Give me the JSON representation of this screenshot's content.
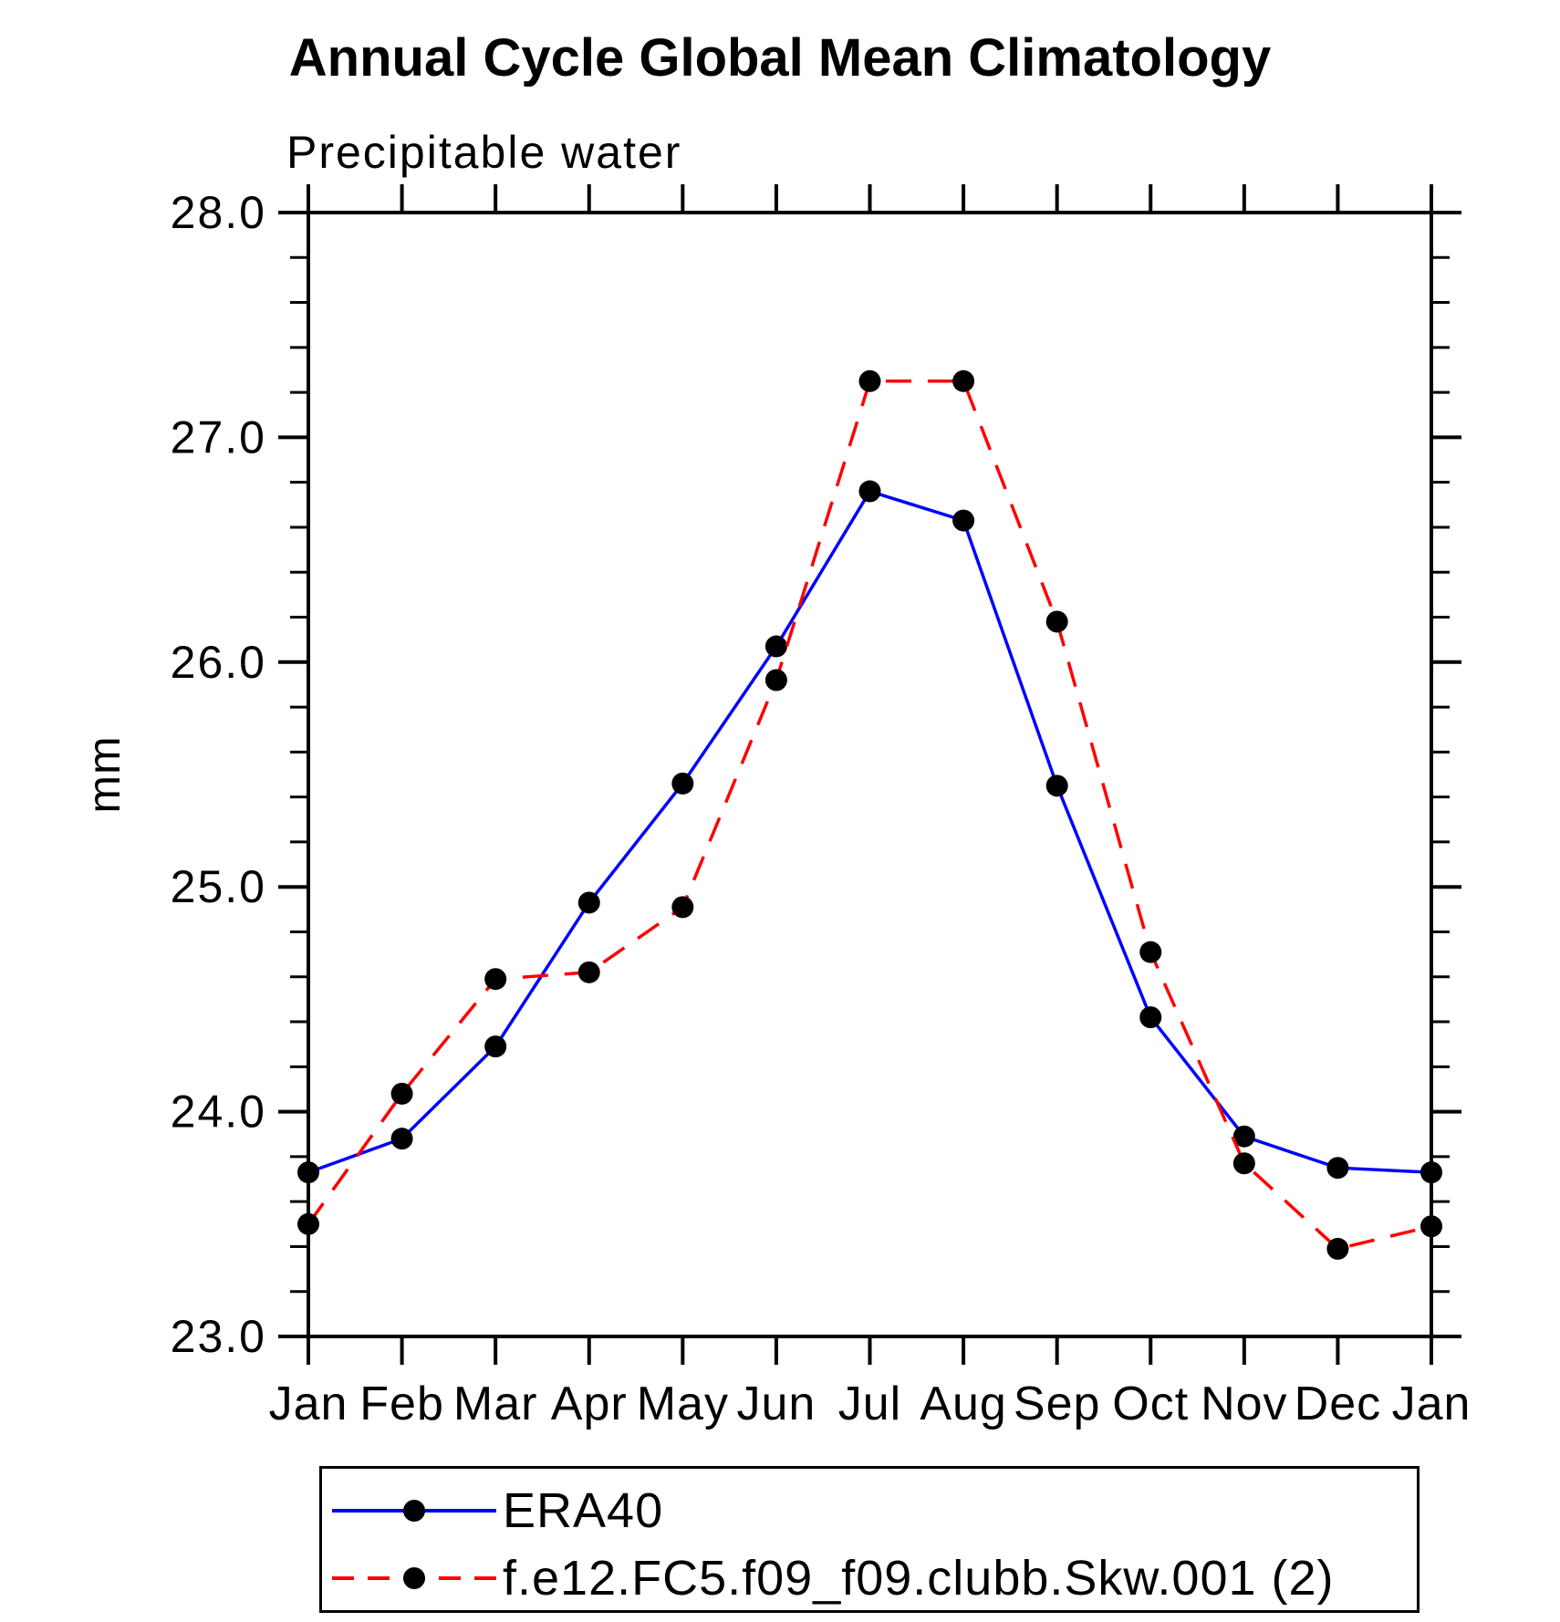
{
  "title": "Annual Cycle Global Mean Climatology",
  "subtitle": "Precipitable water",
  "y_axis_label": "mm",
  "chart_data": {
    "type": "line",
    "title": "Annual Cycle Global Mean Climatology",
    "subtitle": "Precipitable water",
    "ylabel": "mm",
    "xlabel": "",
    "x_tick_labels": [
      "Jan",
      "Feb",
      "Mar",
      "Apr",
      "May",
      "Jun",
      "Jul",
      "Aug",
      "Sep",
      "Oct",
      "Nov",
      "Dec",
      "Jan"
    ],
    "ylim": [
      23.0,
      28.0
    ],
    "y_major_tick_step": 1.0,
    "y_minor_tick_step": 0.2,
    "y_tick_labels": [
      "23.0",
      "24.0",
      "25.0",
      "26.0",
      "27.0",
      "28.0"
    ],
    "grid": false,
    "legend_position": "bottom",
    "axis_color": "#000000",
    "marker_color": "#000000",
    "series": [
      {
        "name": "ERA40",
        "color": "#0000ff",
        "line_style": "solid",
        "marker": "filled-circle",
        "marker_color": "#000000",
        "values": [
          23.73,
          23.88,
          24.29,
          24.93,
          25.46,
          26.07,
          26.76,
          26.63,
          25.45,
          24.42,
          23.89,
          23.75,
          23.73
        ]
      },
      {
        "name": "f.e12.FC5.f09_f09.clubb.Skw.001 (2)",
        "color": "#ff0000",
        "line_style": "dashed",
        "marker": "filled-circle",
        "marker_color": "#000000",
        "values": [
          23.5,
          24.08,
          24.59,
          24.62,
          24.91,
          25.92,
          27.25,
          27.25,
          26.18,
          24.71,
          23.77,
          23.39,
          23.49
        ]
      }
    ]
  }
}
